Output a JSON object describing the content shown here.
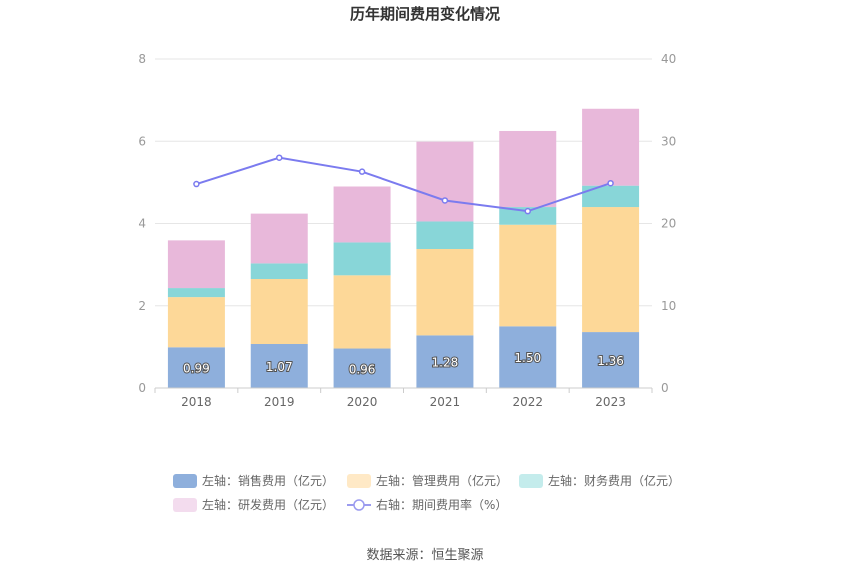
{
  "chart_data": {
    "type": "bar",
    "title": "历年期间费用变化情况",
    "categories": [
      "2018",
      "2019",
      "2020",
      "2021",
      "2022",
      "2023"
    ],
    "left_axis": {
      "min": 0,
      "max": 8,
      "ticks": [
        "0",
        "2",
        "4",
        "6",
        "8"
      ]
    },
    "right_axis": {
      "min": 0,
      "max": 40,
      "ticks": [
        "0",
        "10",
        "20",
        "30",
        "40"
      ]
    },
    "grid": true,
    "legend_position": "bottom",
    "series": [
      {
        "name": "左轴：销售费用（亿元）",
        "type": "bar",
        "axis": "left",
        "color": "#8eafdc",
        "values": [
          0.99,
          1.07,
          0.96,
          1.28,
          1.5,
          1.36
        ],
        "labels": [
          "0.99",
          "1.07",
          "0.96",
          "1.28",
          "1.50",
          "1.36"
        ]
      },
      {
        "name": "左轴：管理费用（亿元）",
        "type": "bar",
        "axis": "left",
        "color": "#fdd898",
        "values": [
          1.22,
          1.58,
          1.78,
          2.1,
          2.47,
          3.04
        ]
      },
      {
        "name": "左轴：财务费用（亿元）",
        "type": "bar",
        "axis": "left",
        "color": "#88d6d8",
        "values": [
          0.22,
          0.38,
          0.8,
          0.67,
          0.43,
          0.52
        ]
      },
      {
        "name": "左轴：研发费用（亿元）",
        "type": "bar",
        "axis": "left",
        "color": "#e8b8da",
        "values": [
          1.16,
          1.21,
          1.36,
          1.94,
          1.85,
          1.87
        ]
      },
      {
        "name": "右轴：期间费用率（%）",
        "type": "line",
        "axis": "right",
        "color": "#7b7bef",
        "values": [
          24.8,
          28.0,
          26.3,
          22.8,
          21.5,
          24.9
        ]
      }
    ],
    "legend_swatch_colors": [
      "#8eafdc",
      "#ffe9c6",
      "#c4ecec",
      "#f3dcee",
      "#9b9bef"
    ]
  },
  "source": "数据来源：恒生聚源"
}
